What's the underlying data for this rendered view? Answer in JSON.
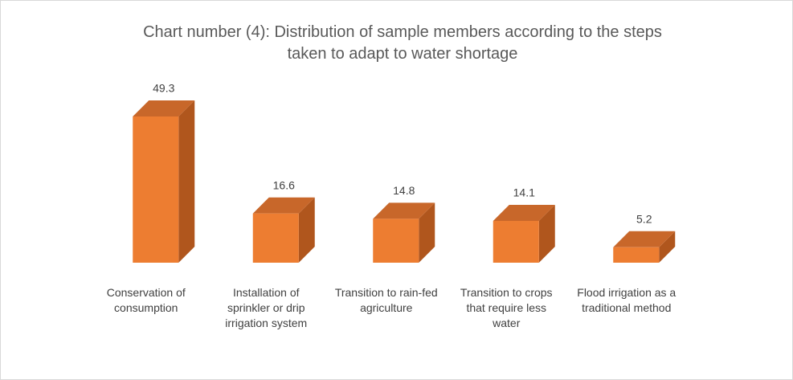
{
  "chart_data": {
    "type": "bar3d",
    "title": "Chart number (4): Distribution of sample members according to the steps taken to adapt to water shortage",
    "categories": [
      "Conservation of consumption",
      "Installation of sprinkler or drip irrigation system",
      "Transition to rain-fed agriculture",
      "Transition to crops that require less water",
      "Flood irrigation as a traditional method"
    ],
    "values": [
      49.3,
      16.6,
      14.8,
      14.1,
      5.2
    ],
    "color": "#ed7d31"
  }
}
